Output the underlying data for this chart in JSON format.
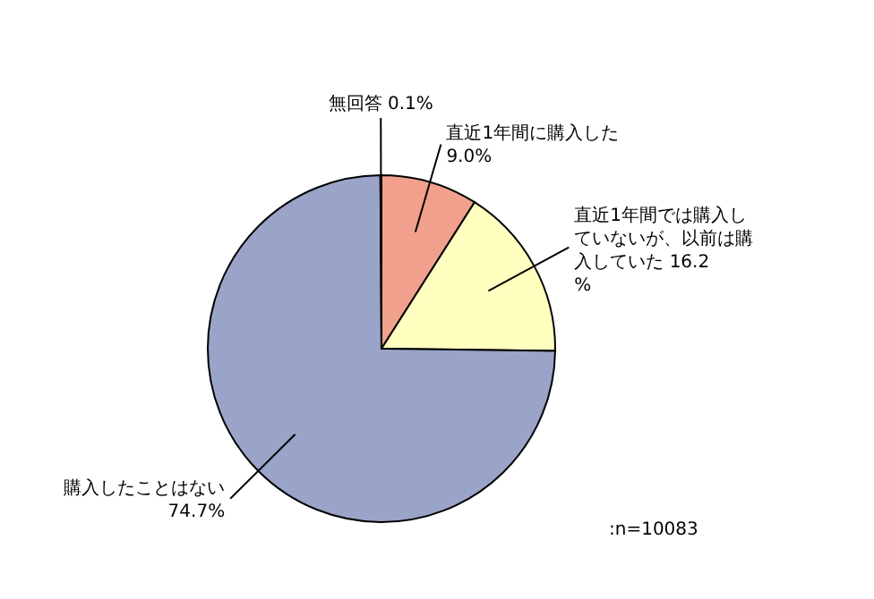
{
  "chart_data": {
    "type": "pie",
    "categories": [
      "直近1年間に購入した",
      "直近1年間では購入していないが、以前は購入していた",
      "購入したことはない",
      "無回答"
    ],
    "values": [
      9.0,
      16.2,
      74.7,
      0.1
    ],
    "value_labels": [
      "9.0%",
      "16.2%",
      "74.7%",
      "0.1%"
    ],
    "colors": [
      "#f0a08c",
      "#ffffc0",
      "#9aa3c8",
      "#ffffff"
    ],
    "annotations": [
      ":n=10083"
    ]
  }
}
